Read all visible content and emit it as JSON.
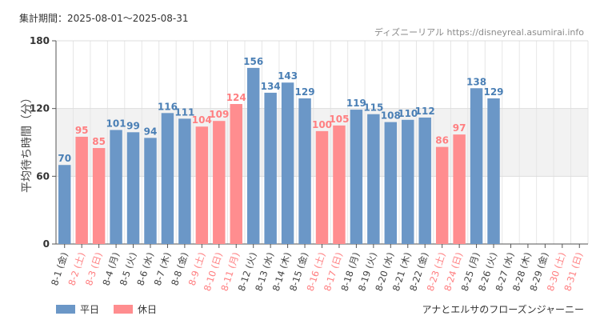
{
  "header": {
    "period": "集計期間：2025-08-01〜2025-08-31",
    "credit": "ディズニーリアル https://disneyreal.asumirai.info"
  },
  "footer": {
    "attraction": "アナとエルサのフローズンジャーニー"
  },
  "legend": [
    {
      "label": "平日",
      "color": "#6b97c7"
    },
    {
      "label": "休日",
      "color": "#ff8d8f"
    }
  ],
  "colors": {
    "weekday": "#6b97c7",
    "holiday": "#ff8d8f",
    "weekday_value": "#4a7fb5",
    "holiday_value": "#ff7f81",
    "weekday_tick": "#444444",
    "holiday_tick": "#ff7f81",
    "band": "#f2f2f2"
  },
  "chart_data": {
    "type": "bar",
    "ylabel": "平均待ち時間（分）",
    "ylim": [
      0,
      180
    ],
    "yticks": [
      0,
      60,
      120,
      180
    ],
    "shaded_band": [
      60,
      120
    ],
    "grid": true,
    "legend_position": "bottom-left",
    "categories": [
      "8-1 (金)",
      "8-2 (土)",
      "8-3 (日)",
      "8-4 (月)",
      "8-5 (火)",
      "8-6 (水)",
      "8-7 (木)",
      "8-8 (金)",
      "8-9 (土)",
      "8-10 (日)",
      "8-11 (月)",
      "8-12 (火)",
      "8-13 (水)",
      "8-14 (木)",
      "8-15 (金)",
      "8-16 (土)",
      "8-17 (日)",
      "8-18 (月)",
      "8-19 (火)",
      "8-20 (水)",
      "8-21 (木)",
      "8-22 (金)",
      "8-23 (土)",
      "8-24 (日)",
      "8-25 (月)",
      "8-26 (火)",
      "8-27 (水)",
      "8-28 (木)",
      "8-29 (金)",
      "8-30 (土)",
      "8-31 (日)"
    ],
    "values": [
      70,
      95,
      85,
      101,
      99,
      94,
      116,
      111,
      104,
      109,
      124,
      156,
      134,
      143,
      129,
      100,
      105,
      119,
      115,
      108,
      110,
      112,
      86,
      97,
      138,
      129,
      null,
      null,
      null,
      null,
      null
    ],
    "day_type": [
      "平日",
      "休日",
      "休日",
      "平日",
      "平日",
      "平日",
      "平日",
      "平日",
      "休日",
      "休日",
      "休日",
      "平日",
      "平日",
      "平日",
      "平日",
      "休日",
      "休日",
      "平日",
      "平日",
      "平日",
      "平日",
      "平日",
      "休日",
      "休日",
      "平日",
      "平日",
      "平日",
      "平日",
      "平日",
      "休日",
      "休日"
    ]
  }
}
